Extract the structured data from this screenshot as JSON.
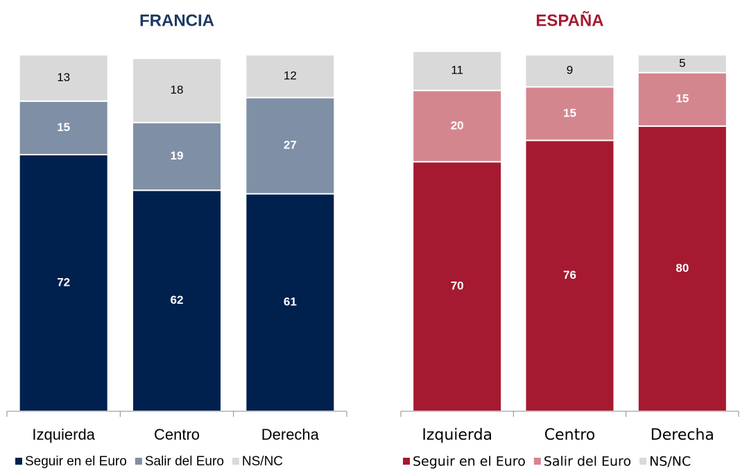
{
  "chart_data": [
    {
      "type": "stacked_bar",
      "title": "FRANCIA",
      "title_color": "#1f3864",
      "categories": [
        "Izquierda",
        "Centro",
        "Derecha"
      ],
      "series": [
        {
          "name": "Seguir en el Euro",
          "color": "#00204e",
          "label_color": "#ffffff",
          "values": [
            72,
            62,
            61
          ]
        },
        {
          "name": "Salir del Euro",
          "color": "#7f8fa6",
          "label_color": "#ffffff",
          "values": [
            15,
            19,
            27
          ]
        },
        {
          "name": "NS/NC",
          "color": "#d9d9d9",
          "label_color": "#000000",
          "values": [
            13,
            18,
            12
          ]
        }
      ],
      "ylim": [
        0,
        100
      ]
    },
    {
      "type": "stacked_bar",
      "title": "ESPAÑA",
      "title_color": "#a51a30",
      "categories": [
        "Izquierda",
        "Centro",
        "Derecha"
      ],
      "series": [
        {
          "name": "Seguir en el Euro",
          "color": "#a51a30",
          "label_color": "#ffffff",
          "values": [
            70,
            76,
            80
          ]
        },
        {
          "name": "Salir del Euro",
          "color": "#d4868f",
          "label_color": "#ffffff",
          "values": [
            20,
            15,
            15
          ]
        },
        {
          "name": "NS/NC",
          "color": "#d9d9d9",
          "label_color": "#000000",
          "values": [
            11,
            9,
            5
          ]
        }
      ],
      "ylim": [
        0,
        100
      ]
    }
  ]
}
